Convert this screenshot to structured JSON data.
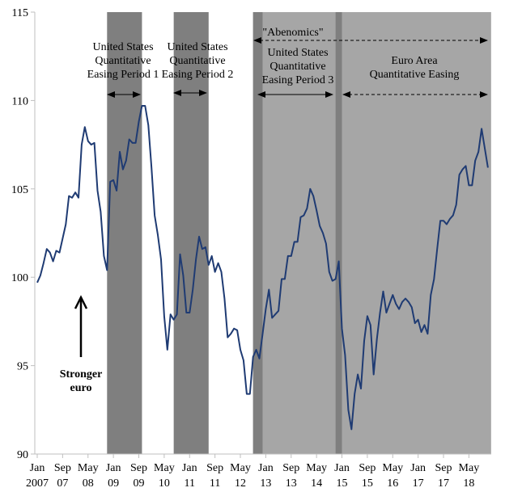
{
  "chart_data": {
    "type": "line",
    "title": "",
    "xlabel": "",
    "ylabel": "",
    "ylim": [
      90,
      115
    ],
    "yticks": [
      90,
      95,
      100,
      105,
      110,
      115
    ],
    "grid": false,
    "line_color": "#1f3b73",
    "x": [
      "2007-01",
      "2007-02",
      "2007-03",
      "2007-04",
      "2007-05",
      "2007-06",
      "2007-07",
      "2007-08",
      "2007-09",
      "2007-10",
      "2007-11",
      "2007-12",
      "2008-01",
      "2008-02",
      "2008-03",
      "2008-04",
      "2008-05",
      "2008-06",
      "2008-07",
      "2008-08",
      "2008-09",
      "2008-10",
      "2008-11",
      "2008-12",
      "2009-01",
      "2009-02",
      "2009-03",
      "2009-04",
      "2009-05",
      "2009-06",
      "2009-07",
      "2009-08",
      "2009-09",
      "2009-10",
      "2009-11",
      "2009-12",
      "2010-01",
      "2010-02",
      "2010-03",
      "2010-04",
      "2010-05",
      "2010-06",
      "2010-07",
      "2010-08",
      "2010-09",
      "2010-10",
      "2010-11",
      "2010-12",
      "2011-01",
      "2011-02",
      "2011-03",
      "2011-04",
      "2011-05",
      "2011-06",
      "2011-07",
      "2011-08",
      "2011-09",
      "2011-10",
      "2011-11",
      "2011-12",
      "2012-01",
      "2012-02",
      "2012-03",
      "2012-04",
      "2012-05",
      "2012-06",
      "2012-07",
      "2012-08",
      "2012-09",
      "2012-10",
      "2012-11",
      "2012-12",
      "2013-01",
      "2013-02",
      "2013-03",
      "2013-04",
      "2013-05",
      "2013-06",
      "2013-07",
      "2013-08",
      "2013-09",
      "2013-10",
      "2013-11",
      "2013-12",
      "2014-01",
      "2014-02",
      "2014-03",
      "2014-04",
      "2014-05",
      "2014-06",
      "2014-07",
      "2014-08",
      "2014-09",
      "2014-10",
      "2014-11",
      "2014-12",
      "2015-01",
      "2015-02",
      "2015-03",
      "2015-04",
      "2015-05",
      "2015-06",
      "2015-07",
      "2015-08",
      "2015-09",
      "2015-10",
      "2015-11",
      "2015-12",
      "2016-01",
      "2016-02",
      "2016-03",
      "2016-04",
      "2016-05",
      "2016-06",
      "2016-07",
      "2016-08",
      "2016-09",
      "2016-10",
      "2016-11",
      "2016-12",
      "2017-01",
      "2017-02",
      "2017-03",
      "2017-04",
      "2017-05",
      "2017-06",
      "2017-07",
      "2017-08",
      "2017-09",
      "2017-10",
      "2017-11",
      "2017-12",
      "2018-01",
      "2018-02",
      "2018-03",
      "2018-04",
      "2018-05",
      "2018-06",
      "2018-07",
      "2018-08",
      "2018-09",
      "2018-10",
      "2018-11"
    ],
    "values": [
      99.7,
      100.1,
      100.8,
      101.6,
      101.4,
      100.9,
      101.5,
      101.4,
      102.2,
      103.0,
      104.6,
      104.5,
      104.8,
      104.5,
      107.5,
      108.5,
      107.7,
      107.5,
      107.6,
      104.9,
      103.7,
      101.2,
      100.4,
      105.4,
      105.5,
      104.9,
      107.1,
      106.1,
      106.6,
      107.8,
      107.6,
      107.6,
      108.8,
      109.7,
      109.7,
      108.6,
      106.2,
      103.5,
      102.4,
      101.0,
      97.8,
      95.9,
      97.9,
      97.6,
      97.9,
      101.3,
      100.1,
      98.0,
      98.0,
      99.3,
      101.0,
      102.3,
      101.6,
      101.7,
      100.7,
      101.2,
      100.3,
      100.8,
      100.3,
      98.8,
      96.6,
      96.8,
      97.1,
      97.0,
      95.9,
      95.3,
      93.4,
      93.4,
      95.5,
      95.9,
      95.4,
      96.8,
      98.2,
      99.3,
      97.7,
      97.9,
      98.1,
      99.9,
      99.9,
      101.2,
      101.2,
      102.0,
      102.0,
      103.4,
      103.5,
      103.9,
      105.0,
      104.6,
      103.8,
      102.9,
      102.5,
      101.9,
      100.3,
      99.8,
      99.9,
      100.9,
      97.1,
      95.6,
      92.5,
      91.4,
      93.4,
      94.5,
      93.7,
      96.4,
      97.8,
      97.3,
      94.5,
      96.5,
      98.0,
      99.2,
      98.0,
      98.5,
      99.0,
      98.5,
      98.2,
      98.6,
      98.8,
      98.6,
      98.3,
      97.4,
      97.6,
      96.9,
      97.3,
      96.8,
      99.0,
      99.9,
      101.6,
      103.2,
      103.2,
      103.0,
      103.3,
      103.5,
      104.1,
      105.8,
      106.1,
      106.3,
      105.2,
      105.2,
      106.6,
      107.1,
      108.4,
      107.3,
      106.2
    ],
    "xtick_labels": [
      {
        "month": "2007-01",
        "line1": "Jan",
        "line2": "2007"
      },
      {
        "month": "2007-09",
        "line1": "Sep",
        "line2": "07"
      },
      {
        "month": "2008-05",
        "line1": "May",
        "line2": "08"
      },
      {
        "month": "2009-01",
        "line1": "Jan",
        "line2": "09"
      },
      {
        "month": "2009-09",
        "line1": "Sep",
        "line2": "09"
      },
      {
        "month": "2010-05",
        "line1": "May",
        "line2": "10"
      },
      {
        "month": "2011-01",
        "line1": "Jan",
        "line2": "11"
      },
      {
        "month": "2011-09",
        "line1": "Sep",
        "line2": "11"
      },
      {
        "month": "2012-05",
        "line1": "May",
        "line2": "12"
      },
      {
        "month": "2013-01",
        "line1": "Jan",
        "line2": "13"
      },
      {
        "month": "2013-09",
        "line1": "Sep",
        "line2": "13"
      },
      {
        "month": "2014-05",
        "line1": "May",
        "line2": "14"
      },
      {
        "month": "2015-01",
        "line1": "Jan",
        "line2": "15"
      },
      {
        "month": "2015-09",
        "line1": "Sep",
        "line2": "15"
      },
      {
        "month": "2016-05",
        "line1": "May",
        "line2": "16"
      },
      {
        "month": "2017-01",
        "line1": "Jan",
        "line2": "17"
      },
      {
        "month": "2017-09",
        "line1": "Sep",
        "line2": "17"
      },
      {
        "month": "2018-05",
        "line1": "May",
        "line2": "18"
      }
    ],
    "shaded_periods": [
      {
        "start": "2012-09",
        "end": "2018-12",
        "color": "#a6a6a6"
      },
      {
        "start": "2008-11",
        "end": "2009-10",
        "color": "#7f7f7f"
      },
      {
        "start": "2010-08",
        "end": "2011-07",
        "color": "#7f7f7f"
      },
      {
        "start": "2012-09",
        "end": "2012-12",
        "color": "#7f7f7f"
      },
      {
        "start": "2014-11",
        "end": "2015-01",
        "color": "#7f7f7f"
      }
    ],
    "annotations": {
      "qe1": [
        "United States",
        "Quantitative",
        "Easing Period 1"
      ],
      "qe2": [
        "United States",
        "Quantitative",
        "Easing Period 2"
      ],
      "abenomics": "\"Abenomics\"",
      "qe3": [
        "United States",
        "Quantitative",
        "Easing Period 3"
      ],
      "euro_qe": [
        "Euro Area",
        "Quantitative Easing"
      ],
      "stronger_euro": [
        "Stronger",
        "euro"
      ]
    }
  }
}
